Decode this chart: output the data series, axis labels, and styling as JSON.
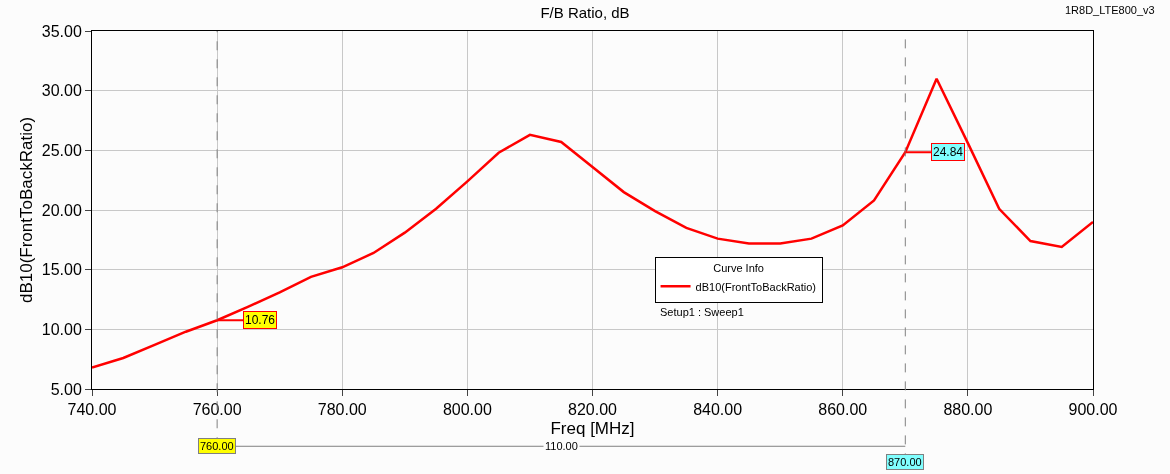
{
  "chart_data": {
    "type": "line",
    "title": "F/B Ratio, dB",
    "xlabel": "Freq [MHz]",
    "ylabel": "dB10(FrontToBackRatio)",
    "legend_title": "Curve Info",
    "legend": "center",
    "grid": true,
    "line_style": "solid",
    "marker": "none",
    "x": [
      740,
      745,
      750,
      755,
      760,
      765,
      770,
      775,
      780,
      785,
      790,
      795,
      800,
      805,
      810,
      815,
      820,
      825,
      830,
      835,
      840,
      845,
      850,
      855,
      860,
      865,
      870,
      875,
      880,
      885,
      890,
      895,
      900
    ],
    "series": [
      {
        "name": "dB10(FrontToBackRatio)",
        "color": "#ff0000",
        "values": [
          6.8,
          7.6,
          8.7,
          9.8,
          10.76,
          11.9,
          13.1,
          14.4,
          15.2,
          16.4,
          18.1,
          20.1,
          22.4,
          24.8,
          26.3,
          25.7,
          23.6,
          21.5,
          19.9,
          18.5,
          17.6,
          17.2,
          17.2,
          17.6,
          18.7,
          20.8,
          24.84,
          31.0,
          25.6,
          20.1,
          17.4,
          16.9,
          19.0
        ]
      }
    ],
    "xlim": [
      740,
      900
    ],
    "ylim": [
      5,
      35
    ],
    "xticks": [
      {
        "value": 740,
        "label": "740.00"
      },
      {
        "value": 760,
        "label": "760.00"
      },
      {
        "value": 780,
        "label": "780.00"
      },
      {
        "value": 800,
        "label": "800.00"
      },
      {
        "value": 820,
        "label": "820.00"
      },
      {
        "value": 840,
        "label": "840.00"
      },
      {
        "value": 860,
        "label": "860.00"
      },
      {
        "value": 880,
        "label": "880.00"
      },
      {
        "value": 900,
        "label": "900.00"
      }
    ],
    "yticks": [
      {
        "value": 5,
        "label": "5.00"
      },
      {
        "value": 10,
        "label": "10.00"
      },
      {
        "value": 15,
        "label": "15.00"
      },
      {
        "value": 20,
        "label": "20.00"
      },
      {
        "value": 25,
        "label": "25.00"
      },
      {
        "value": 30,
        "label": "30.00"
      },
      {
        "value": 35,
        "label": "35.00"
      }
    ],
    "ref_lines": [
      {
        "axis": "x",
        "value": 760,
        "label": "760.00",
        "line_style": "dashed"
      },
      {
        "axis": "x",
        "value": 870,
        "label": "870.00",
        "line_style": "dashed"
      }
    ],
    "annotations": [
      {
        "text": "10.76",
        "x": 760,
        "y": 10.76
      },
      {
        "text": "24.84",
        "x": 870,
        "y": 24.84
      },
      "110.00",
      "Setup1 : Sweep1",
      "1R8D_LTE800_v3"
    ]
  }
}
